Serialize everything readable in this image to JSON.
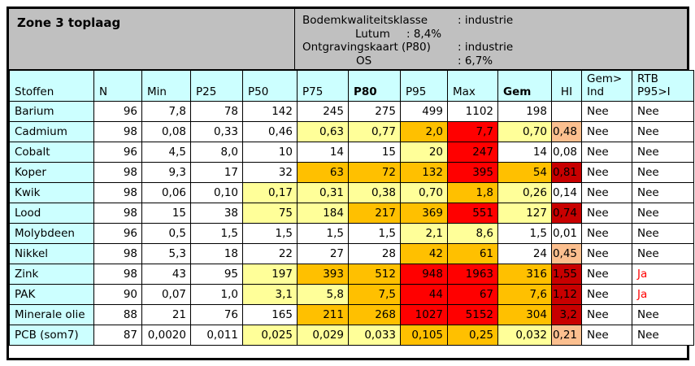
{
  "title": "Zone 3 toplaag",
  "info": [
    {
      "label": "Bodemkwaliteitsklasse",
      "value": ": industrie"
    },
    {
      "label": "Lutum",
      "value": ": 8,4%"
    },
    {
      "label": "Ontgravingskaart (P80)",
      "value": ": industrie"
    },
    {
      "label": "OS",
      "value": ": 6,7%"
    }
  ],
  "palette": {
    "band_bg": "#C0C0C0",
    "header_bg": "#CCFFFF",
    "pale_yellow": "#FFFF99",
    "orange": "#FFC000",
    "red": "#FF0000",
    "dark_red": "#C80000",
    "peach": "#FBBF8F",
    "ja_text": "#FF0000",
    "border": "#000000"
  },
  "table": {
    "col_keys": [
      "stof",
      "n",
      "min",
      "p25",
      "p50",
      "p75",
      "p80",
      "p95",
      "max",
      "gem",
      "hi",
      "gemind",
      "rtb"
    ],
    "headers": {
      "stof": "Stoffen",
      "n": "N",
      "min": "Min",
      "p25": "P25",
      "p50": "P50",
      "p75": "P75",
      "p80": "P80",
      "p95": "P95",
      "max": "Max",
      "gem": "Gem",
      "hi": "HI",
      "gemind1": "Gem>",
      "gemind2": "Ind",
      "rtb1": "RTB",
      "rtb2": "P95>I"
    },
    "rows": [
      {
        "stof": "Barium",
        "n": "96",
        "min": "7,8",
        "p25": "78",
        "p50": "142",
        "p75": "245",
        "p80": "275",
        "p95": "499",
        "max": "1102",
        "gem": "198",
        "hi": "",
        "gemind": "Nee",
        "rtb": "Nee",
        "fills": {}
      },
      {
        "stof": "Cadmium",
        "n": "98",
        "min": "0,08",
        "p25": "0,33",
        "p50": "0,46",
        "p75": "0,63",
        "p80": "0,77",
        "p95": "2,0",
        "max": "7,7",
        "gem": "0,70",
        "hi": "0,48",
        "gemind": "Nee",
        "rtb": "Nee",
        "fills": {
          "p75": "y",
          "p80": "y",
          "p95": "o",
          "max": "r",
          "gem": "y",
          "hi": "pe"
        }
      },
      {
        "stof": "Cobalt",
        "n": "96",
        "min": "4,5",
        "p25": "8,0",
        "p50": "10",
        "p75": "14",
        "p80": "15",
        "p95": "20",
        "max": "247",
        "gem": "14",
        "hi": "0,08",
        "gemind": "Nee",
        "rtb": "Nee",
        "fills": {
          "p95": "y",
          "max": "r"
        }
      },
      {
        "stof": "Koper",
        "n": "98",
        "min": "9,3",
        "p25": "17",
        "p50": "32",
        "p75": "63",
        "p80": "72",
        "p95": "132",
        "max": "395",
        "gem": "54",
        "hi": "0,81",
        "gemind": "Nee",
        "rtb": "Nee",
        "fills": {
          "p75": "o",
          "p80": "o",
          "p95": "o",
          "max": "r",
          "gem": "o",
          "hi": "dr"
        }
      },
      {
        "stof": "Kwik",
        "n": "98",
        "min": "0,06",
        "p25": "0,10",
        "p50": "0,17",
        "p75": "0,31",
        "p80": "0,38",
        "p95": "0,70",
        "max": "1,8",
        "gem": "0,26",
        "hi": "0,14",
        "gemind": "Nee",
        "rtb": "Nee",
        "fills": {
          "p50": "y",
          "p75": "y",
          "p80": "y",
          "p95": "y",
          "max": "o",
          "gem": "y"
        }
      },
      {
        "stof": "Lood",
        "n": "98",
        "min": "15",
        "p25": "38",
        "p50": "75",
        "p75": "184",
        "p80": "217",
        "p95": "369",
        "max": "551",
        "gem": "127",
        "hi": "0,74",
        "gemind": "Nee",
        "rtb": "Nee",
        "fills": {
          "p50": "y",
          "p75": "y",
          "p80": "o",
          "p95": "o",
          "max": "r",
          "gem": "y",
          "hi": "dr"
        }
      },
      {
        "stof": "Molybdeen",
        "n": "96",
        "min": "0,5",
        "p25": "1,5",
        "p50": "1,5",
        "p75": "1,5",
        "p80": "1,5",
        "p95": "2,1",
        "max": "8,6",
        "gem": "1,5",
        "hi": "0,01",
        "gemind": "Nee",
        "rtb": "Nee",
        "fills": {
          "p95": "y",
          "max": "y"
        }
      },
      {
        "stof": "Nikkel",
        "n": "98",
        "min": "5,3",
        "p25": "18",
        "p50": "22",
        "p75": "27",
        "p80": "28",
        "p95": "42",
        "max": "61",
        "gem": "24",
        "hi": "0,45",
        "gemind": "Nee",
        "rtb": "Nee",
        "fills": {
          "p95": "o",
          "max": "o",
          "hi": "pe"
        }
      },
      {
        "stof": "Zink",
        "n": "98",
        "min": "43",
        "p25": "95",
        "p50": "197",
        "p75": "393",
        "p80": "512",
        "p95": "948",
        "max": "1963",
        "gem": "316",
        "hi": "1,55",
        "gemind": "Nee",
        "rtb": "Ja",
        "fills": {
          "p50": "y",
          "p75": "o",
          "p80": "o",
          "p95": "r",
          "max": "r",
          "gem": "o",
          "hi": "dr"
        },
        "red": [
          "rtb"
        ]
      },
      {
        "stof": "PAK",
        "n": "90",
        "min": "0,07",
        "p25": "1,0",
        "p50": "3,1",
        "p75": "5,8",
        "p80": "7,5",
        "p95": "44",
        "max": "67",
        "gem": "7,6",
        "hi": "1,12",
        "gemind": "Nee",
        "rtb": "Ja",
        "fills": {
          "p50": "y",
          "p75": "y",
          "p80": "o",
          "p95": "r",
          "max": "r",
          "gem": "o",
          "hi": "dr"
        },
        "red": [
          "rtb"
        ]
      },
      {
        "stof": "Minerale olie",
        "n": "88",
        "min": "21",
        "p25": "76",
        "p50": "165",
        "p75": "211",
        "p80": "268",
        "p95": "1027",
        "max": "5152",
        "gem": "304",
        "hi": "3,2",
        "gemind": "Nee",
        "rtb": "Nee",
        "fills": {
          "p75": "o",
          "p80": "o",
          "p95": "r",
          "max": "r",
          "gem": "o",
          "hi": "dr"
        }
      },
      {
        "stof": "PCB (som7)",
        "n": "87",
        "min": "0,0020",
        "p25": "0,011",
        "p50": "0,025",
        "p75": "0,029",
        "p80": "0,033",
        "p95": "0,105",
        "max": "0,25",
        "gem": "0,032",
        "hi": "0,21",
        "gemind": "Nee",
        "rtb": "Nee",
        "fills": {
          "p50": "y",
          "p75": "y",
          "p80": "y",
          "p95": "o",
          "max": "o",
          "gem": "y",
          "hi": "pe"
        }
      }
    ]
  }
}
